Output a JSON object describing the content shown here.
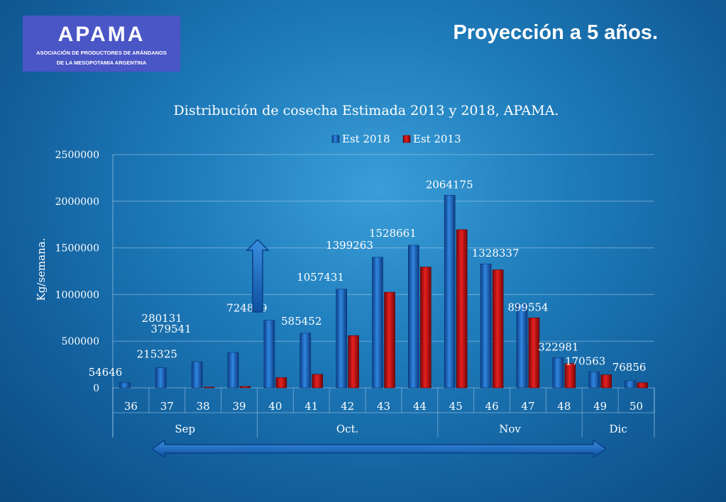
{
  "logo": {
    "wordmark": "APAMA",
    "line1": "ASOCIACIÓN DE PRODUCTORES DE ARÁNDANOS",
    "line2": "DE LA MESOPOTAMIA ARGENTINA"
  },
  "headline": "Proyección a 5 años.",
  "colors": {
    "est2018": "#1565c0",
    "est2013": "#cc1010",
    "arrow": "#1e72c8"
  },
  "chart_data": {
    "type": "bar",
    "title": "Distribución de cosecha Estimada 2013 y 2018, APAMA.",
    "ylabel": "Kg/semana.",
    "xlabel": "",
    "ylim": [
      0,
      2500000
    ],
    "yticks": [
      0,
      500000,
      1000000,
      1500000,
      2000000,
      2500000
    ],
    "ytick_labels": [
      "0",
      "500000",
      "1000000",
      "1500000",
      "2000000",
      "2500000"
    ],
    "grid": true,
    "legend_position": "top",
    "categories": [
      "36",
      "37",
      "38",
      "39",
      "40",
      "41",
      "42",
      "43",
      "44",
      "45",
      "46",
      "47",
      "48",
      "49",
      "50"
    ],
    "month_groups": [
      {
        "label": "Sep",
        "start": 0,
        "end": 3
      },
      {
        "label": "Oct.",
        "start": 4,
        "end": 8
      },
      {
        "label": "Nov",
        "start": 9,
        "end": 12
      },
      {
        "label": "Dic",
        "start": 13,
        "end": 14
      }
    ],
    "series": [
      {
        "name": "Est 2018",
        "values": [
          54646,
          215325,
          280131,
          379541,
          724839,
          585452,
          1057431,
          1399263,
          1528661,
          2064175,
          1328337,
          899554,
          322981,
          170563,
          76856
        ]
      },
      {
        "name": "Est 2013",
        "values": [
          0,
          0,
          8000,
          15000,
          110000,
          145000,
          560000,
          1025000,
          1295000,
          1695000,
          1265000,
          750000,
          260000,
          140000,
          55000
        ]
      }
    ],
    "data_labels": [
      "54646",
      "215325",
      "280131",
      "379541",
      "724839",
      "585452",
      "1057431",
      "1399263",
      "1528661",
      "2064175",
      "1328337",
      "899554",
      "322981",
      "170563",
      "76856"
    ]
  }
}
